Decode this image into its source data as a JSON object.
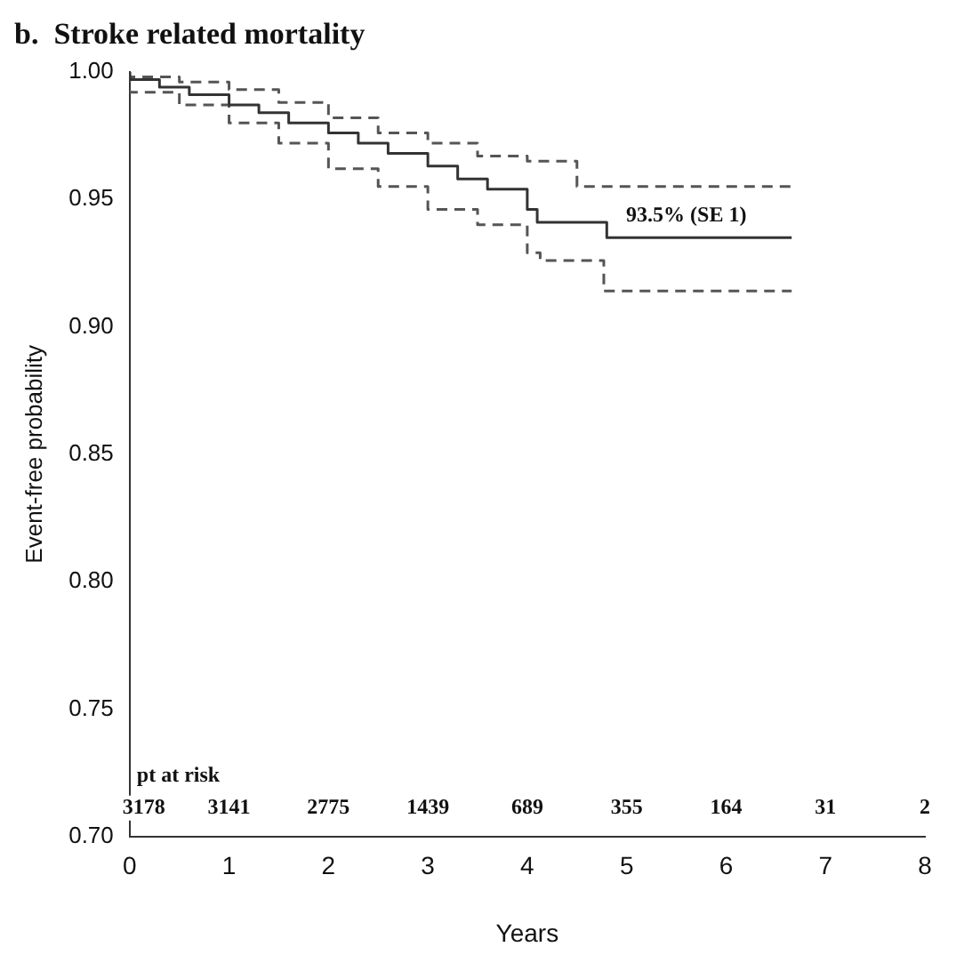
{
  "chart_data": {
    "type": "step",
    "title": "b.  Stroke related mortality",
    "xlabel": "Years",
    "ylabel": "Event-free probability",
    "xlim": [
      0,
      8
    ],
    "xticks": [
      0,
      1,
      2,
      3,
      4,
      5,
      6,
      7,
      8
    ],
    "ylim": [
      0.7,
      1.0
    ],
    "yticks": [
      {
        "value": 0.7,
        "label": "0.70"
      },
      {
        "value": 0.75,
        "label": "0.75"
      },
      {
        "value": 0.8,
        "label": "0.80"
      },
      {
        "value": 0.85,
        "label": "0.85"
      },
      {
        "value": 0.9,
        "label": "0.90"
      },
      {
        "value": 0.95,
        "label": "0.95"
      },
      {
        "value": 1.0,
        "label": "1.00"
      }
    ],
    "grid": false,
    "legend": false,
    "marker": "none",
    "series": [
      {
        "color": "#333333",
        "line_style": "solid",
        "x": [
          0,
          0.3,
          0.6,
          1,
          1.3,
          1.6,
          2,
          2.3,
          2.6,
          3,
          3.3,
          3.6,
          4,
          4.1,
          4.8,
          4.95,
          6.66
        ],
        "values": [
          1.0,
          0.997,
          0.994,
          0.991,
          0.987,
          0.984,
          0.98,
          0.976,
          0.972,
          0.968,
          0.963,
          0.958,
          0.954,
          0.946,
          0.941,
          0.935,
          0.935
        ]
      },
      {
        "color": "#555555",
        "line_style": "dashed",
        "x": [
          0,
          0.5,
          1,
          1.5,
          2,
          2.5,
          3,
          3.5,
          4,
          4.5,
          4.95,
          6.66
        ],
        "values": [
          1.0,
          0.998,
          0.996,
          0.993,
          0.988,
          0.982,
          0.976,
          0.972,
          0.967,
          0.965,
          0.955,
          0.955
        ]
      },
      {
        "color": "#555555",
        "line_style": "dashed",
        "x": [
          0,
          0.5,
          1,
          1.5,
          2,
          2.5,
          3,
          3.5,
          4,
          4.13,
          4.77,
          4.95,
          6.66
        ],
        "values": [
          1.0,
          0.992,
          0.987,
          0.98,
          0.972,
          0.962,
          0.955,
          0.946,
          0.94,
          0.929,
          0.926,
          0.914,
          0.914
        ]
      }
    ],
    "annotations": [
      "93.5% (SE 1)",
      "pt at risk",
      "3178",
      "3141",
      "2775",
      "1439",
      "689",
      "355",
      "164",
      "31",
      "2"
    ]
  }
}
